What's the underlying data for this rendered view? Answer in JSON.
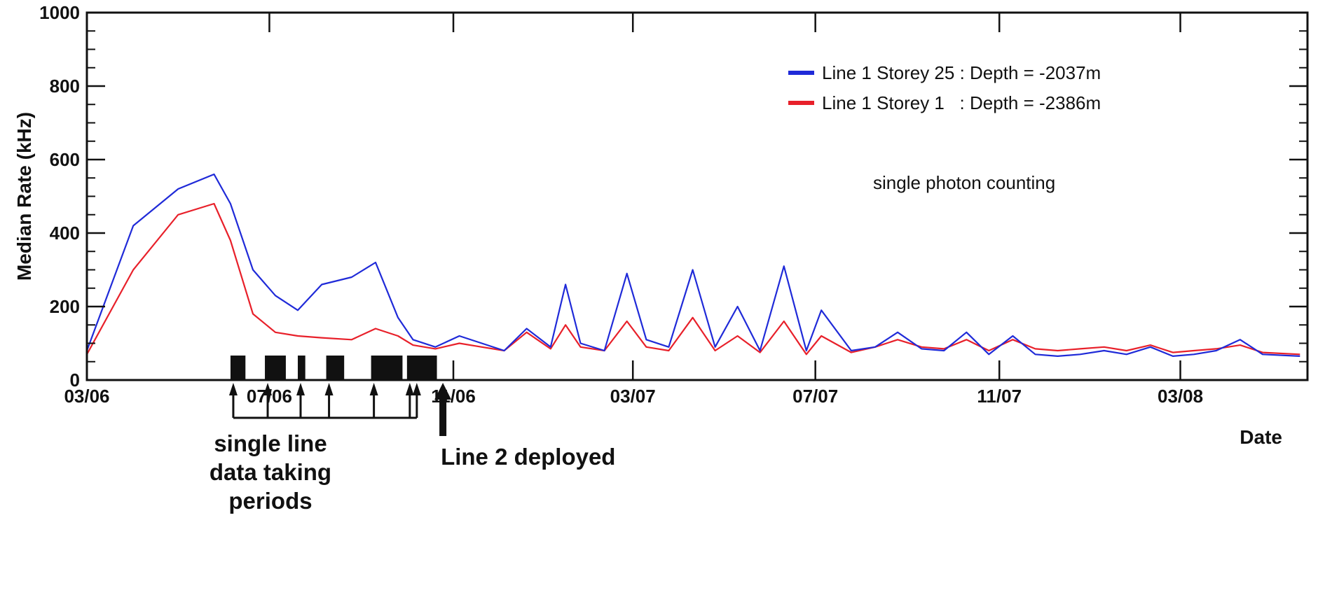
{
  "chart_data": {
    "type": "line",
    "ylabel": "Median Rate (kHz)",
    "xlabel": "Date",
    "ylim": [
      0,
      1000
    ],
    "xlim": [
      "2006-03-01",
      "2008-05-25"
    ],
    "y_ticks": [
      0,
      200,
      400,
      600,
      800,
      1000
    ],
    "x_ticks": [
      {
        "label": "03/06",
        "date": "2006-03-01"
      },
      {
        "label": "07/06",
        "date": "2006-07-01"
      },
      {
        "label": "11/06",
        "date": "2006-11-01"
      },
      {
        "label": "03/07",
        "date": "2007-03-01"
      },
      {
        "label": "07/07",
        "date": "2007-07-01"
      },
      {
        "label": "11/07",
        "date": "2007-11-01"
      },
      {
        "label": "03/08",
        "date": "2008-03-01"
      }
    ],
    "grid": false,
    "legend_position": "top-right",
    "annotation": "single photon counting",
    "series": [
      {
        "name": "Line 1 Storey 25 : Depth = -2037m",
        "color": "#1f2ad8",
        "points": [
          [
            "2006-03-01",
            80
          ],
          [
            "2006-04-01",
            420
          ],
          [
            "2006-05-01",
            520
          ],
          [
            "2006-05-25",
            560
          ],
          [
            "2006-06-05",
            480
          ],
          [
            "2006-06-20",
            300
          ],
          [
            "2006-07-05",
            230
          ],
          [
            "2006-07-20",
            190
          ],
          [
            "2006-08-05",
            260
          ],
          [
            "2006-08-25",
            280
          ],
          [
            "2006-09-10",
            320
          ],
          [
            "2006-09-25",
            170
          ],
          [
            "2006-10-05",
            110
          ],
          [
            "2006-10-20",
            90
          ],
          [
            "2006-11-05",
            120
          ],
          [
            "2006-11-20",
            100
          ],
          [
            "2006-12-05",
            80
          ],
          [
            "2006-12-20",
            140
          ],
          [
            "2007-01-05",
            90
          ],
          [
            "2007-01-15",
            260
          ],
          [
            "2007-01-25",
            100
          ],
          [
            "2007-02-10",
            80
          ],
          [
            "2007-02-25",
            290
          ],
          [
            "2007-03-10",
            110
          ],
          [
            "2007-03-25",
            90
          ],
          [
            "2007-04-10",
            300
          ],
          [
            "2007-04-25",
            90
          ],
          [
            "2007-05-10",
            200
          ],
          [
            "2007-05-25",
            80
          ],
          [
            "2007-06-10",
            310
          ],
          [
            "2007-06-25",
            80
          ],
          [
            "2007-07-05",
            190
          ],
          [
            "2007-07-25",
            80
          ],
          [
            "2007-08-10",
            90
          ],
          [
            "2007-08-25",
            130
          ],
          [
            "2007-09-10",
            85
          ],
          [
            "2007-09-25",
            80
          ],
          [
            "2007-10-10",
            130
          ],
          [
            "2007-10-25",
            70
          ],
          [
            "2007-11-10",
            120
          ],
          [
            "2007-11-25",
            70
          ],
          [
            "2007-12-10",
            65
          ],
          [
            "2007-12-25",
            70
          ],
          [
            "2008-01-10",
            80
          ],
          [
            "2008-01-25",
            70
          ],
          [
            "2008-02-10",
            90
          ],
          [
            "2008-02-25",
            65
          ],
          [
            "2008-03-10",
            70
          ],
          [
            "2008-03-25",
            80
          ],
          [
            "2008-04-10",
            110
          ],
          [
            "2008-04-25",
            70
          ],
          [
            "2008-05-20",
            65
          ]
        ]
      },
      {
        "name": "Line 1 Storey 1   : Depth = -2386m",
        "color": "#e8202a",
        "points": [
          [
            "2006-03-01",
            70
          ],
          [
            "2006-04-01",
            300
          ],
          [
            "2006-05-01",
            450
          ],
          [
            "2006-05-25",
            480
          ],
          [
            "2006-06-05",
            380
          ],
          [
            "2006-06-20",
            180
          ],
          [
            "2006-07-05",
            130
          ],
          [
            "2006-07-20",
            120
          ],
          [
            "2006-08-05",
            115
          ],
          [
            "2006-08-25",
            110
          ],
          [
            "2006-09-10",
            140
          ],
          [
            "2006-09-25",
            120
          ],
          [
            "2006-10-05",
            95
          ],
          [
            "2006-10-20",
            85
          ],
          [
            "2006-11-05",
            100
          ],
          [
            "2006-11-20",
            90
          ],
          [
            "2006-12-05",
            80
          ],
          [
            "2006-12-20",
            130
          ],
          [
            "2007-01-05",
            85
          ],
          [
            "2007-01-15",
            150
          ],
          [
            "2007-01-25",
            90
          ],
          [
            "2007-02-10",
            80
          ],
          [
            "2007-02-25",
            160
          ],
          [
            "2007-03-10",
            90
          ],
          [
            "2007-03-25",
            80
          ],
          [
            "2007-04-10",
            170
          ],
          [
            "2007-04-25",
            80
          ],
          [
            "2007-05-10",
            120
          ],
          [
            "2007-05-25",
            75
          ],
          [
            "2007-06-10",
            160
          ],
          [
            "2007-06-25",
            70
          ],
          [
            "2007-07-05",
            120
          ],
          [
            "2007-07-25",
            75
          ],
          [
            "2007-08-10",
            90
          ],
          [
            "2007-08-25",
            110
          ],
          [
            "2007-09-10",
            90
          ],
          [
            "2007-09-25",
            85
          ],
          [
            "2007-10-10",
            110
          ],
          [
            "2007-10-25",
            80
          ],
          [
            "2007-11-10",
            110
          ],
          [
            "2007-11-25",
            85
          ],
          [
            "2007-12-10",
            80
          ],
          [
            "2007-12-25",
            85
          ],
          [
            "2008-01-10",
            90
          ],
          [
            "2008-01-25",
            80
          ],
          [
            "2008-02-10",
            95
          ],
          [
            "2008-02-25",
            75
          ],
          [
            "2008-03-10",
            80
          ],
          [
            "2008-03-25",
            85
          ],
          [
            "2008-04-10",
            95
          ],
          [
            "2008-04-25",
            75
          ],
          [
            "2008-05-20",
            70
          ]
        ]
      }
    ],
    "single_line_periods": [
      [
        "2006-06-05",
        "2006-06-15"
      ],
      [
        "2006-06-28",
        "2006-07-12"
      ],
      [
        "2006-07-20",
        "2006-07-25"
      ],
      [
        "2006-08-08",
        "2006-08-20"
      ],
      [
        "2006-09-07",
        "2006-09-28"
      ],
      [
        "2006-10-01",
        "2006-10-21"
      ]
    ],
    "annotations": {
      "periods_label": [
        "single line",
        "data taking",
        "periods"
      ],
      "deploy_label": "Line 2 deployed",
      "deploy_date": "2006-10-25"
    }
  }
}
